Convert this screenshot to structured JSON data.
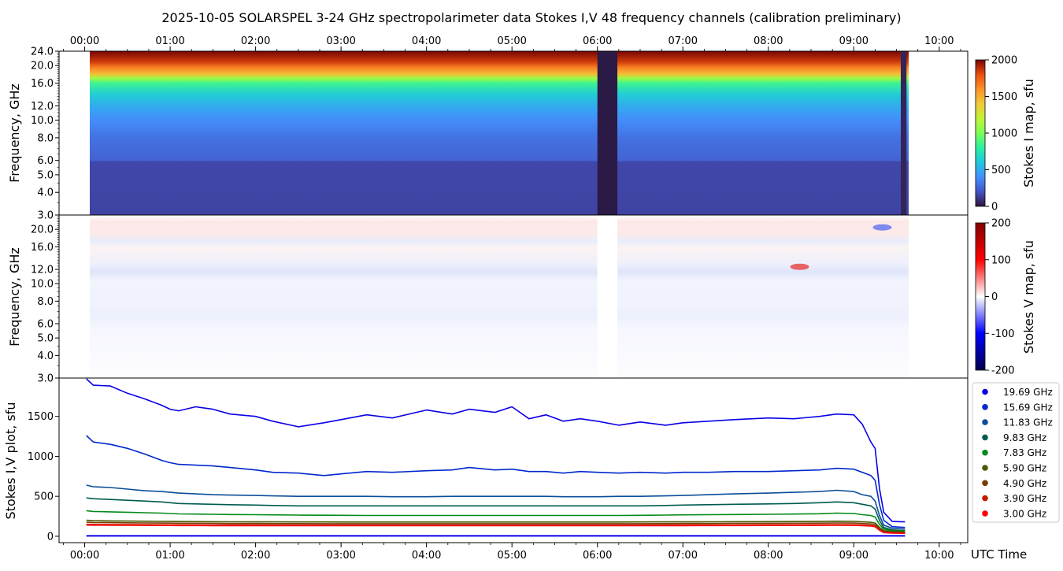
{
  "figure": {
    "title": "2025-10-05  SOLARSPEL  3-24 GHz spectropolarimeter data   Stokes I,V   48 frequency channels   (calibration preliminary)",
    "time_axis_label": "UTC Time"
  },
  "chart_data": [
    {
      "type": "heatmap",
      "name": "stokes-i-map",
      "ylabel": "Frequency, GHz",
      "x_ticks": [
        "00:00",
        "01:00",
        "02:00",
        "03:00",
        "04:00",
        "05:00",
        "06:00",
        "07:00",
        "08:00",
        "09:00",
        "10:00"
      ],
      "y_scale": "log",
      "y_ticks": [
        3.0,
        4.0,
        5.0,
        6.0,
        8.0,
        10.0,
        12.0,
        16.0,
        20.0,
        24.0
      ],
      "xlim": [
        "-00:18",
        "10:20"
      ],
      "ylim": [
        3.0,
        24.0
      ],
      "data_start": "00:02",
      "data_end": "09:37",
      "gap": [
        "06:00",
        "06:14"
      ],
      "colorbar": {
        "label": "Stokes I map, sfu",
        "range": [
          0,
          2000
        ],
        "ticks": [
          0,
          500,
          1000,
          1500,
          2000
        ],
        "colormap": "turbo"
      },
      "frequency_profile_sfu": [
        {
          "f": 3.0,
          "v": 150
        },
        {
          "f": 5.9,
          "v": 160
        },
        {
          "f": 6.0,
          "v": 250
        },
        {
          "f": 8.0,
          "v": 300
        },
        {
          "f": 10.0,
          "v": 390
        },
        {
          "f": 12.0,
          "v": 500
        },
        {
          "f": 14.0,
          "v": 640
        },
        {
          "f": 16.0,
          "v": 850
        },
        {
          "f": 17.0,
          "v": 1100
        },
        {
          "f": 18.0,
          "v": 1450
        },
        {
          "f": 19.5,
          "v": 1650
        },
        {
          "f": 21.0,
          "v": 1850
        },
        {
          "f": 24.0,
          "v": 2000
        }
      ]
    },
    {
      "type": "heatmap",
      "name": "stokes-v-map",
      "ylabel": "Frequency, GHz",
      "y_scale": "log",
      "y_ticks": [
        3.0,
        4.0,
        5.0,
        6.0,
        8.0,
        10.0,
        12.0,
        16.0,
        20.0
      ],
      "ylim": [
        3.0,
        24.0
      ],
      "colorbar": {
        "label": "Stokes V map, sfu",
        "range": [
          -200,
          200
        ],
        "ticks": [
          -200,
          -100,
          0,
          100,
          200
        ],
        "colormap": "seismic"
      },
      "features": [
        {
          "t": "08:22",
          "f": 12.4,
          "v": 180
        },
        {
          "t": "09:20",
          "f": 20.5,
          "v": -140
        }
      ]
    },
    {
      "type": "line",
      "name": "stokes-iv-plot",
      "ylabel": "Stokes I,V plot, sfu",
      "xlabel": "UTC Time",
      "x_ticks": [
        "00:00",
        "01:00",
        "02:00",
        "03:00",
        "04:00",
        "05:00",
        "06:00",
        "07:00",
        "08:00",
        "09:00",
        "10:00"
      ],
      "y_ticks": [
        0,
        500,
        1000,
        1500
      ],
      "ylim": [
        -80,
        1980
      ],
      "legend_position": "right",
      "x_hours": [
        0.02,
        0.1,
        0.3,
        0.5,
        0.7,
        0.9,
        1.0,
        1.1,
        1.3,
        1.5,
        1.7,
        2.0,
        2.2,
        2.5,
        2.8,
        3.0,
        3.3,
        3.6,
        4.0,
        4.3,
        4.5,
        4.8,
        5.0,
        5.2,
        5.4,
        5.6,
        5.8,
        6.0,
        6.25,
        6.5,
        6.8,
        7.0,
        7.3,
        7.6,
        8.0,
        8.3,
        8.6,
        8.8,
        9.0,
        9.1,
        9.2,
        9.25,
        9.3,
        9.35,
        9.45,
        9.6
      ],
      "series": [
        {
          "name": "19.69 GHz",
          "color": "#0a00e6",
          "values": [
            1970,
            1890,
            1880,
            1790,
            1720,
            1640,
            1590,
            1570,
            1620,
            1590,
            1530,
            1500,
            1440,
            1370,
            1420,
            1460,
            1520,
            1480,
            1580,
            1530,
            1590,
            1550,
            1620,
            1470,
            1520,
            1440,
            1470,
            1440,
            1390,
            1430,
            1390,
            1420,
            1440,
            1460,
            1480,
            1470,
            1500,
            1530,
            1520,
            1400,
            1180,
            1100,
            600,
            300,
            185,
            180
          ]
        },
        {
          "name": "15.69 GHz",
          "color": "#0028cc",
          "values": [
            1260,
            1180,
            1150,
            1100,
            1030,
            950,
            920,
            900,
            890,
            880,
            860,
            830,
            800,
            790,
            760,
            780,
            810,
            800,
            820,
            830,
            860,
            830,
            840,
            810,
            810,
            790,
            810,
            800,
            790,
            800,
            790,
            800,
            800,
            810,
            810,
            820,
            830,
            850,
            840,
            800,
            760,
            700,
            400,
            200,
            120,
            110
          ]
        },
        {
          "name": "11.83 GHz",
          "color": "#0a4e9a",
          "values": [
            640,
            620,
            610,
            590,
            570,
            560,
            550,
            540,
            530,
            520,
            515,
            510,
            505,
            500,
            500,
            500,
            500,
            495,
            495,
            500,
            500,
            500,
            500,
            500,
            500,
            495,
            495,
            495,
            500,
            500,
            505,
            510,
            520,
            530,
            540,
            550,
            560,
            575,
            560,
            520,
            500,
            440,
            260,
            140,
            100,
            90
          ]
        },
        {
          "name": "9.83 GHz",
          "color": "#005a50",
          "values": [
            480,
            470,
            460,
            450,
            440,
            430,
            420,
            410,
            405,
            400,
            395,
            390,
            385,
            380,
            380,
            380,
            380,
            380,
            380,
            380,
            380,
            380,
            380,
            380,
            380,
            380,
            380,
            380,
            380,
            380,
            385,
            390,
            395,
            400,
            405,
            410,
            420,
            430,
            420,
            400,
            380,
            340,
            200,
            110,
            80,
            70
          ]
        },
        {
          "name": "7.83 GHz",
          "color": "#038a19",
          "values": [
            320,
            310,
            305,
            300,
            295,
            290,
            285,
            280,
            278,
            275,
            272,
            270,
            268,
            265,
            263,
            262,
            260,
            260,
            260,
            260,
            260,
            260,
            260,
            260,
            260,
            260,
            260,
            260,
            260,
            262,
            265,
            268,
            270,
            272,
            275,
            278,
            282,
            290,
            285,
            270,
            260,
            240,
            150,
            90,
            70,
            65
          ]
        },
        {
          "name": "5.90 GHz",
          "color": "#465a00",
          "values": [
            200,
            195,
            192,
            190,
            188,
            186,
            185,
            184,
            183,
            182,
            181,
            180,
            180,
            179,
            179,
            178,
            178,
            178,
            178,
            178,
            178,
            178,
            178,
            178,
            178,
            178,
            178,
            178,
            178,
            179,
            180,
            180,
            181,
            182,
            183,
            184,
            185,
            188,
            186,
            180,
            175,
            165,
            110,
            70,
            60,
            55
          ]
        },
        {
          "name": "4.90 GHz",
          "color": "#7a3c00",
          "values": [
            175,
            172,
            170,
            168,
            166,
            165,
            164,
            163,
            162,
            161,
            160,
            160,
            159,
            159,
            158,
            158,
            158,
            158,
            158,
            158,
            158,
            158,
            158,
            158,
            158,
            158,
            158,
            158,
            158,
            158,
            159,
            160,
            160,
            161,
            162,
            163,
            164,
            166,
            165,
            160,
            155,
            145,
            95,
            60,
            50,
            48
          ]
        },
        {
          "name": "3.90 GHz",
          "color": "#c41a00",
          "values": [
            150,
            148,
            147,
            146,
            145,
            144,
            143,
            143,
            142,
            142,
            141,
            141,
            140,
            140,
            140,
            140,
            140,
            140,
            140,
            140,
            140,
            140,
            140,
            140,
            140,
            140,
            140,
            140,
            140,
            140,
            141,
            141,
            142,
            142,
            143,
            143,
            144,
            145,
            144,
            140,
            135,
            125,
            80,
            50,
            42,
            40
          ]
        },
        {
          "name": "3.00 GHz",
          "color": "#ff0000",
          "values": [
            140,
            139,
            138,
            137,
            136,
            135,
            135,
            134,
            134,
            133,
            133,
            133,
            132,
            132,
            132,
            132,
            132,
            132,
            132,
            132,
            132,
            132,
            132,
            132,
            132,
            132,
            132,
            132,
            132,
            132,
            133,
            133,
            134,
            134,
            135,
            135,
            136,
            137,
            136,
            132,
            128,
            118,
            75,
            45,
            38,
            36
          ]
        }
      ]
    }
  ]
}
